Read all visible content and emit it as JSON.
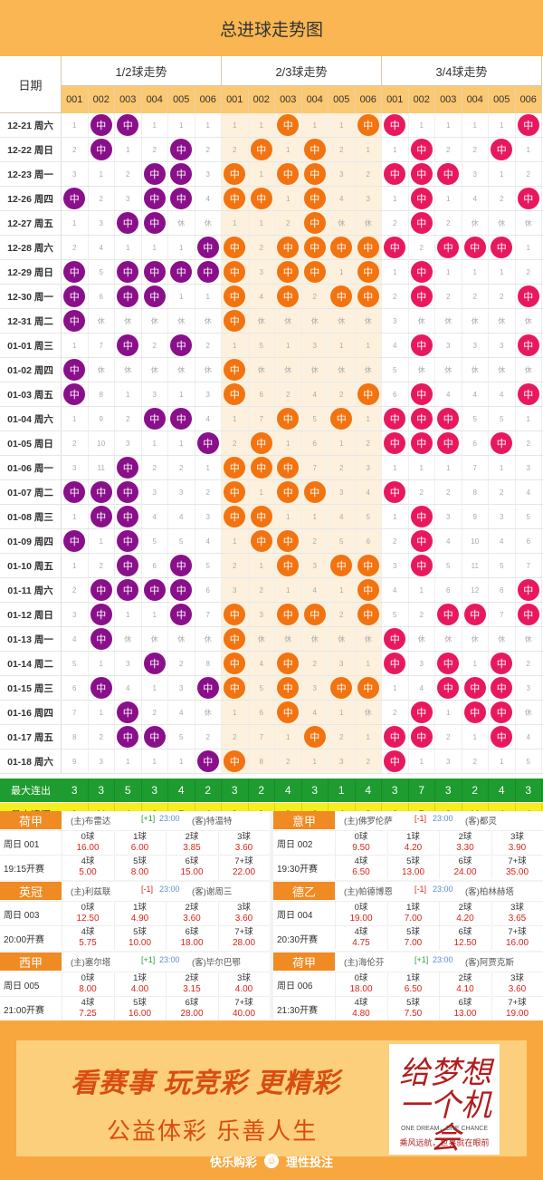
{
  "title": "总进球走势图",
  "header": {
    "date_label": "日期",
    "groups": [
      "1/2球走势",
      "2/3球走势",
      "3/4球走势"
    ],
    "cols": [
      "001",
      "002",
      "003",
      "004",
      "005",
      "006"
    ]
  },
  "hit_label": "中",
  "colors": {
    "g0": "#8a0f8a",
    "g1": "#f2730f",
    "g2": "#e8185f"
  },
  "rows": [
    {
      "date": "12-21 周六",
      "g": [
        [
          "1",
          "中",
          "中",
          "1",
          "1",
          "1"
        ],
        [
          "1",
          "1",
          "中",
          "1",
          "1",
          "中"
        ],
        [
          "中",
          "1",
          "1",
          "1",
          "1",
          "中"
        ]
      ]
    },
    {
      "date": "12-22 周日",
      "g": [
        [
          "2",
          "中",
          "1",
          "2",
          "中",
          "2"
        ],
        [
          "2",
          "中",
          "1",
          "中",
          "2",
          "1"
        ],
        [
          "1",
          "中",
          "2",
          "2",
          "中",
          "1"
        ]
      ]
    },
    {
      "date": "12-23 周一",
      "g": [
        [
          "3",
          "1",
          "2",
          "中",
          "中",
          "3"
        ],
        [
          "中",
          "1",
          "中",
          "中",
          "3",
          "2"
        ],
        [
          "中",
          "中",
          "中",
          "3",
          "1",
          "2"
        ]
      ]
    },
    {
      "date": "12-26 周四",
      "g": [
        [
          "中",
          "2",
          "3",
          "中",
          "中",
          "4"
        ],
        [
          "中",
          "中",
          "1",
          "中",
          "4",
          "3"
        ],
        [
          "1",
          "中",
          "1",
          "4",
          "2",
          "中"
        ]
      ]
    },
    {
      "date": "12-27 周五",
      "g": [
        [
          "1",
          "3",
          "中",
          "中",
          "休",
          "休"
        ],
        [
          "1",
          "1",
          "2",
          "中",
          "休",
          "休"
        ],
        [
          "2",
          "中",
          "2",
          "休",
          "休",
          "休"
        ]
      ]
    },
    {
      "date": "12-28 周六",
      "g": [
        [
          "2",
          "4",
          "1",
          "1",
          "1",
          "中"
        ],
        [
          "中",
          "2",
          "中",
          "中",
          "中",
          "中"
        ],
        [
          "中",
          "2",
          "中",
          "中",
          "中",
          "1"
        ]
      ]
    },
    {
      "date": "12-29 周日",
      "g": [
        [
          "中",
          "5",
          "中",
          "中",
          "中",
          "中"
        ],
        [
          "中",
          "3",
          "中",
          "中",
          "1",
          "中"
        ],
        [
          "1",
          "中",
          "1",
          "1",
          "1",
          "2"
        ]
      ]
    },
    {
      "date": "12-30 周一",
      "g": [
        [
          "中",
          "6",
          "中",
          "中",
          "1",
          "1"
        ],
        [
          "中",
          "4",
          "中",
          "2",
          "中",
          "中"
        ],
        [
          "2",
          "中",
          "2",
          "2",
          "2",
          "中"
        ]
      ]
    },
    {
      "date": "12-31 周二",
      "g": [
        [
          "中",
          "休",
          "休",
          "休",
          "休",
          "休"
        ],
        [
          "中",
          "休",
          "休",
          "休",
          "休",
          "休"
        ],
        [
          "3",
          "休",
          "休",
          "休",
          "休",
          "休"
        ]
      ]
    },
    {
      "date": "01-01 周三",
      "g": [
        [
          "1",
          "7",
          "中",
          "2",
          "中",
          "2"
        ],
        [
          "1",
          "5",
          "1",
          "3",
          "1",
          "1"
        ],
        [
          "4",
          "中",
          "3",
          "3",
          "3",
          "中"
        ]
      ]
    },
    {
      "date": "01-02 周四",
      "g": [
        [
          "中",
          "休",
          "休",
          "休",
          "休",
          "休"
        ],
        [
          "中",
          "休",
          "休",
          "休",
          "休",
          "休"
        ],
        [
          "5",
          "休",
          "休",
          "休",
          "休",
          "休"
        ]
      ]
    },
    {
      "date": "01-03 周五",
      "g": [
        [
          "中",
          "8",
          "1",
          "3",
          "1",
          "3"
        ],
        [
          "中",
          "6",
          "2",
          "4",
          "2",
          "中"
        ],
        [
          "6",
          "中",
          "4",
          "4",
          "4",
          "中"
        ]
      ]
    },
    {
      "date": "01-04 周六",
      "g": [
        [
          "1",
          "9",
          "2",
          "中",
          "中",
          "4"
        ],
        [
          "1",
          "7",
          "中",
          "5",
          "中",
          "1"
        ],
        [
          "中",
          "中",
          "中",
          "5",
          "5",
          "1"
        ]
      ]
    },
    {
      "date": "01-05 周日",
      "g": [
        [
          "2",
          "10",
          "3",
          "1",
          "1",
          "中"
        ],
        [
          "2",
          "中",
          "1",
          "6",
          "1",
          "2"
        ],
        [
          "中",
          "中",
          "中",
          "6",
          "中",
          "2"
        ]
      ]
    },
    {
      "date": "01-06 周一",
      "g": [
        [
          "3",
          "11",
          "中",
          "2",
          "2",
          "1"
        ],
        [
          "中",
          "中",
          "中",
          "7",
          "2",
          "3"
        ],
        [
          "1",
          "1",
          "1",
          "7",
          "1",
          "3"
        ]
      ]
    },
    {
      "date": "01-07 周二",
      "g": [
        [
          "中",
          "中",
          "中",
          "3",
          "3",
          "2"
        ],
        [
          "中",
          "1",
          "中",
          "中",
          "3",
          "4"
        ],
        [
          "中",
          "2",
          "2",
          "8",
          "2",
          "4"
        ]
      ]
    },
    {
      "date": "01-08 周三",
      "g": [
        [
          "1",
          "中",
          "中",
          "4",
          "4",
          "3"
        ],
        [
          "中",
          "中",
          "1",
          "1",
          "4",
          "5"
        ],
        [
          "1",
          "中",
          "3",
          "9",
          "3",
          "5"
        ]
      ]
    },
    {
      "date": "01-09 周四",
      "g": [
        [
          "中",
          "1",
          "中",
          "5",
          "5",
          "4"
        ],
        [
          "1",
          "中",
          "中",
          "2",
          "5",
          "6"
        ],
        [
          "2",
          "中",
          "4",
          "10",
          "4",
          "6"
        ]
      ]
    },
    {
      "date": "01-10 周五",
      "g": [
        [
          "1",
          "2",
          "中",
          "6",
          "中",
          "5"
        ],
        [
          "2",
          "1",
          "中",
          "3",
          "中",
          "中"
        ],
        [
          "3",
          "中",
          "5",
          "11",
          "5",
          "7"
        ]
      ]
    },
    {
      "date": "01-11 周六",
      "g": [
        [
          "2",
          "中",
          "中",
          "中",
          "中",
          "6"
        ],
        [
          "3",
          "2",
          "1",
          "4",
          "1",
          "中"
        ],
        [
          "4",
          "1",
          "6",
          "12",
          "6",
          "中"
        ]
      ]
    },
    {
      "date": "01-12 周日",
      "g": [
        [
          "3",
          "中",
          "1",
          "1",
          "中",
          "7"
        ],
        [
          "中",
          "3",
          "中",
          "中",
          "2",
          "中"
        ],
        [
          "5",
          "2",
          "中",
          "中",
          "7",
          "中"
        ]
      ]
    },
    {
      "date": "01-13 周一",
      "g": [
        [
          "4",
          "中",
          "休",
          "休",
          "休",
          "休"
        ],
        [
          "中",
          "休",
          "休",
          "休",
          "休",
          "休"
        ],
        [
          "中",
          "休",
          "休",
          "休",
          "休",
          "休"
        ]
      ]
    },
    {
      "date": "01-14 周二",
      "g": [
        [
          "5",
          "1",
          "3",
          "中",
          "2",
          "8"
        ],
        [
          "中",
          "4",
          "中",
          "2",
          "3",
          "1"
        ],
        [
          "中",
          "3",
          "中",
          "1",
          "中",
          "2"
        ]
      ]
    },
    {
      "date": "01-15 周三",
      "g": [
        [
          "6",
          "中",
          "4",
          "1",
          "3",
          "中"
        ],
        [
          "中",
          "5",
          "中",
          "3",
          "中",
          "中"
        ],
        [
          "1",
          "4",
          "中",
          "中",
          "中",
          "3"
        ]
      ]
    },
    {
      "date": "01-16 周四",
      "g": [
        [
          "7",
          "1",
          "中",
          "2",
          "4",
          "休"
        ],
        [
          "1",
          "6",
          "中",
          "4",
          "1",
          "休"
        ],
        [
          "2",
          "中",
          "1",
          "中",
          "中",
          "休"
        ]
      ]
    },
    {
      "date": "01-17 周五",
      "g": [
        [
          "8",
          "2",
          "中",
          "中",
          "5",
          "2"
        ],
        [
          "2",
          "7",
          "1",
          "中",
          "2",
          "1"
        ],
        [
          "中",
          "中",
          "2",
          "1",
          "中",
          "4"
        ]
      ]
    },
    {
      "date": "01-18 周六",
      "g": [
        [
          "9",
          "3",
          "1",
          "1",
          "1",
          "中"
        ],
        [
          "中",
          "8",
          "2",
          "1",
          "3",
          "2"
        ],
        [
          "中",
          "1",
          "3",
          "2",
          "1",
          "5"
        ]
      ]
    }
  ],
  "stats": [
    {
      "label": "最大连出",
      "values": [
        "3",
        "3",
        "5",
        "3",
        "4",
        "2",
        "3",
        "2",
        "4",
        "3",
        "1",
        "4",
        "3",
        "7",
        "3",
        "2",
        "4",
        "3"
      ]
    },
    {
      "label": "最大遗漏",
      "values": [
        "9",
        "11",
        "4",
        "3",
        "5",
        "4",
        "3",
        "9",
        "2",
        "6",
        "4",
        "2",
        "6",
        "5",
        "6",
        "11",
        "4",
        "4"
      ]
    }
  ],
  "matches": [
    {
      "league": "荷甲",
      "code": "周日 001",
      "time": "19:15开赛",
      "home": "(主)布雷达",
      "hcp": "[+1]",
      "kick": "23:00",
      "away": "(客)特温特",
      "odds": [
        [
          "0球",
          "16.00"
        ],
        [
          "1球",
          "6.00"
        ],
        [
          "2球",
          "3.85"
        ],
        [
          "3球",
          "3.60"
        ],
        [
          "4球",
          "5.00"
        ],
        [
          "5球",
          "8.00"
        ],
        [
          "6球",
          "15.00"
        ],
        [
          "7+球",
          "22.00"
        ]
      ]
    },
    {
      "league": "意甲",
      "code": "周日 002",
      "time": "19:30开赛",
      "home": "(主)佛罗伦萨",
      "hcp": "[-1]",
      "kick": "23:00",
      "away": "(客)都灵",
      "odds": [
        [
          "0球",
          "9.50"
        ],
        [
          "1球",
          "4.20"
        ],
        [
          "2球",
          "3.30"
        ],
        [
          "3球",
          "3.90"
        ],
        [
          "4球",
          "6.50"
        ],
        [
          "5球",
          "13.00"
        ],
        [
          "6球",
          "24.00"
        ],
        [
          "7+球",
          "35.00"
        ]
      ]
    },
    {
      "league": "英冠",
      "code": "周日 003",
      "time": "20:00开赛",
      "home": "(主)利兹联",
      "hcp": "[-1]",
      "kick": "23:00",
      "away": "(客)谢周三",
      "odds": [
        [
          "0球",
          "12.50"
        ],
        [
          "1球",
          "4.90"
        ],
        [
          "2球",
          "3.60"
        ],
        [
          "3球",
          "3.60"
        ],
        [
          "4球",
          "5.75"
        ],
        [
          "5球",
          "10.00"
        ],
        [
          "6球",
          "18.00"
        ],
        [
          "7+球",
          "28.00"
        ]
      ]
    },
    {
      "league": "德乙",
      "code": "周日 004",
      "time": "20:30开赛",
      "home": "(主)帕德博恩",
      "hcp": "[-1]",
      "kick": "23:00",
      "away": "(客)柏林赫塔",
      "odds": [
        [
          "0球",
          "19.00"
        ],
        [
          "1球",
          "7.00"
        ],
        [
          "2球",
          "4.20"
        ],
        [
          "3球",
          "3.65"
        ],
        [
          "4球",
          "4.75"
        ],
        [
          "5球",
          "7.00"
        ],
        [
          "6球",
          "12.50"
        ],
        [
          "7+球",
          "16.00"
        ]
      ]
    },
    {
      "league": "西甲",
      "code": "周日 005",
      "time": "21:00开赛",
      "home": "(主)塞尔塔",
      "hcp": "[+1]",
      "kick": "23:00",
      "away": "(客)毕尔巴鄂",
      "odds": [
        [
          "0球",
          "8.00"
        ],
        [
          "1球",
          "4.00"
        ],
        [
          "2球",
          "3.15"
        ],
        [
          "3球",
          "4.00"
        ],
        [
          "4球",
          "7.25"
        ],
        [
          "5球",
          "16.00"
        ],
        [
          "6球",
          "28.00"
        ],
        [
          "7+球",
          "40.00"
        ]
      ]
    },
    {
      "league": "荷甲",
      "code": "周日 006",
      "time": "21:30开赛",
      "home": "(主)海伦芬",
      "hcp": "[+1]",
      "kick": "23:00",
      "away": "(客)阿贾克斯",
      "odds": [
        [
          "0球",
          "18.00"
        ],
        [
          "1球",
          "6.50"
        ],
        [
          "2球",
          "4.10"
        ],
        [
          "3球",
          "3.60"
        ],
        [
          "4球",
          "4.80"
        ],
        [
          "5球",
          "7.50"
        ],
        [
          "6球",
          "13.00"
        ],
        [
          "7+球",
          "19.00"
        ]
      ]
    }
  ],
  "banner": {
    "slogan1": "看赛事 玩竞彩 更精彩",
    "slogan2": "公益体彩 乐善人生",
    "dream_title": "给梦想一个机会",
    "dream_en": "ONE DREAM，ONE CHANCE",
    "dream_cn": "乘风远航，世界就在眼前",
    "footer_left": "快乐购彩",
    "footer_right": "理性投注"
  }
}
